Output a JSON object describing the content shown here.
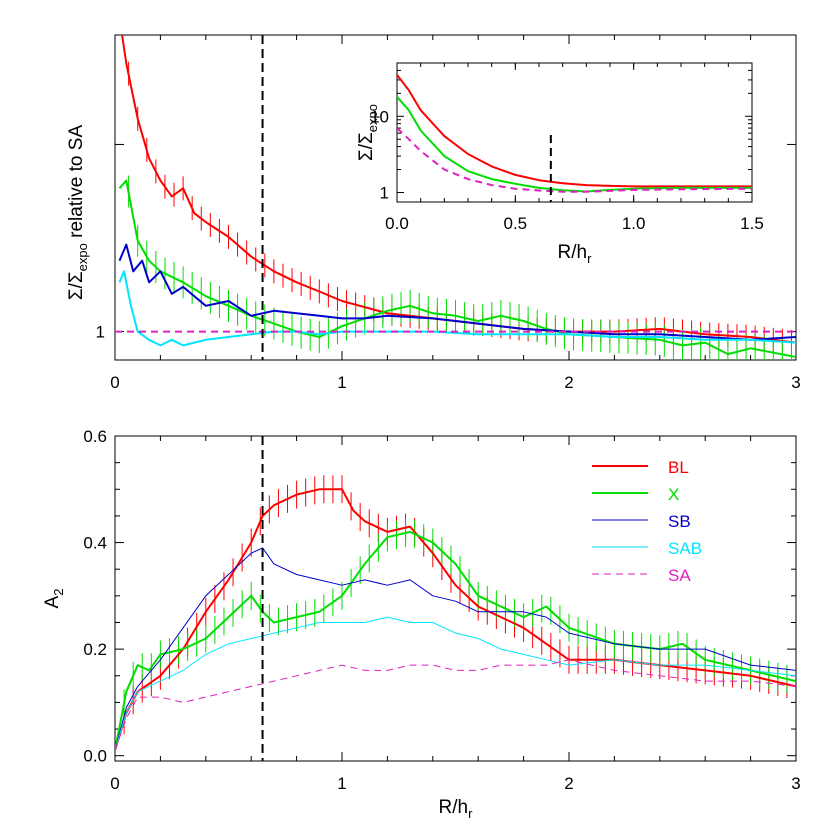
{
  "colors": {
    "BL": "#ff0000",
    "X": "#00dd00",
    "SB": "#0000cc",
    "SAB": "#00e5ff",
    "SA": "#e020c0",
    "marker": "#000000"
  },
  "chart_data": [
    {
      "type": "line",
      "panel": "top",
      "ylabel": "Σ/Σ_expo  relative to SA",
      "xlabel": "",
      "xlim": [
        0,
        3
      ],
      "ylim": [
        0.9,
        3.0
      ],
      "yscale": "log",
      "x_ticks": [
        "0",
        "1",
        "2",
        "3"
      ],
      "y_tick_labels": [
        "1"
      ],
      "vline_x": 0.65,
      "series": [
        {
          "key": "BL",
          "x": [
            0.02,
            0.05,
            0.1,
            0.15,
            0.2,
            0.25,
            0.3,
            0.35,
            0.4,
            0.5,
            0.6,
            0.7,
            0.8,
            0.9,
            1.0,
            1.2,
            1.4,
            1.6,
            1.8,
            2.0,
            2.2,
            2.4,
            2.6,
            2.8,
            3.0
          ],
          "y": [
            3.2,
            2.7,
            2.2,
            1.9,
            1.75,
            1.65,
            1.7,
            1.55,
            1.5,
            1.42,
            1.32,
            1.25,
            1.2,
            1.16,
            1.12,
            1.07,
            1.05,
            1.03,
            1.01,
            1.0,
            1.0,
            1.01,
            0.99,
            0.98,
            0.96
          ]
        },
        {
          "key": "X",
          "x": [
            0.02,
            0.05,
            0.1,
            0.15,
            0.2,
            0.3,
            0.4,
            0.5,
            0.6,
            0.7,
            0.8,
            0.9,
            1.0,
            1.1,
            1.2,
            1.3,
            1.4,
            1.5,
            1.6,
            1.7,
            1.8,
            1.9,
            2.0,
            2.2,
            2.4,
            2.5,
            2.6,
            2.7,
            2.8,
            3.0
          ],
          "y": [
            1.7,
            1.75,
            1.4,
            1.3,
            1.25,
            1.2,
            1.14,
            1.1,
            1.06,
            1.03,
            1.0,
            0.98,
            1.02,
            1.05,
            1.08,
            1.1,
            1.07,
            1.06,
            1.04,
            1.06,
            1.04,
            1.01,
            0.99,
            0.98,
            0.97,
            0.95,
            0.96,
            0.92,
            0.94,
            0.91
          ]
        },
        {
          "key": "SB",
          "x": [
            0.02,
            0.05,
            0.08,
            0.12,
            0.15,
            0.2,
            0.25,
            0.3,
            0.4,
            0.5,
            0.6,
            0.7,
            0.8,
            0.9,
            1.0,
            1.1,
            1.2,
            1.4,
            1.6,
            1.8,
            2.0,
            2.2,
            2.4,
            2.6,
            2.8,
            3.0
          ],
          "y": [
            1.3,
            1.38,
            1.25,
            1.3,
            1.2,
            1.25,
            1.15,
            1.18,
            1.1,
            1.12,
            1.06,
            1.08,
            1.07,
            1.06,
            1.05,
            1.05,
            1.06,
            1.05,
            1.03,
            1.01,
            1.0,
            0.99,
            0.99,
            0.98,
            0.97,
            0.98
          ]
        },
        {
          "key": "SAB",
          "x": [
            0.02,
            0.04,
            0.07,
            0.1,
            0.15,
            0.2,
            0.25,
            0.3,
            0.35,
            0.4,
            0.5,
            0.6,
            0.7,
            0.8,
            0.9,
            1.0,
            1.2,
            1.4,
            1.6,
            1.8,
            2.0,
            2.2,
            2.4,
            2.6,
            2.8,
            3.0
          ],
          "y": [
            1.2,
            1.25,
            1.1,
            1.0,
            0.97,
            0.95,
            0.97,
            0.95,
            0.96,
            0.97,
            0.98,
            0.99,
            1.0,
            1.0,
            0.99,
            1.0,
            1.0,
            1.0,
            0.99,
            0.99,
            0.99,
            0.98,
            0.98,
            0.97,
            0.97,
            0.96
          ]
        },
        {
          "key": "SA",
          "x": [
            0,
            3
          ],
          "y": [
            1.0,
            1.0
          ],
          "dashed": true
        }
      ]
    },
    {
      "type": "line",
      "panel": "inset",
      "ylabel": "Σ/Σ_expo",
      "xlabel": "R/h_r",
      "xlim": [
        0,
        1.5
      ],
      "ylim": [
        0.75,
        50
      ],
      "yscale": "log",
      "x_ticks": [
        "0.0",
        "0.5",
        "1.0",
        "1.5"
      ],
      "y_tick_labels": [
        "1",
        "10"
      ],
      "vline_x": 0.65,
      "series": [
        {
          "key": "BL",
          "x": [
            0.0,
            0.05,
            0.1,
            0.2,
            0.3,
            0.4,
            0.5,
            0.6,
            0.7,
            0.8,
            0.9,
            1.0,
            1.2,
            1.5
          ],
          "y": [
            35,
            22,
            12,
            5.5,
            3.2,
            2.2,
            1.7,
            1.45,
            1.32,
            1.25,
            1.22,
            1.2,
            1.2,
            1.2
          ]
        },
        {
          "key": "X",
          "x": [
            0.0,
            0.05,
            0.1,
            0.2,
            0.3,
            0.4,
            0.5,
            0.6,
            0.7,
            0.8,
            0.9,
            1.0,
            1.2,
            1.5
          ],
          "y": [
            18,
            12,
            6.5,
            3.0,
            1.9,
            1.5,
            1.3,
            1.15,
            1.07,
            1.03,
            1.08,
            1.12,
            1.15,
            1.15
          ]
        },
        {
          "key": "SA",
          "x": [
            0.0,
            0.05,
            0.1,
            0.2,
            0.3,
            0.4,
            0.5,
            0.6,
            0.7,
            0.8,
            0.9,
            1.0,
            1.2,
            1.5
          ],
          "y": [
            7,
            5,
            3.5,
            2.0,
            1.5,
            1.25,
            1.12,
            1.06,
            1.02,
            1.02,
            1.05,
            1.08,
            1.1,
            1.12
          ],
          "dashed": true
        }
      ]
    },
    {
      "type": "line",
      "panel": "bottom",
      "ylabel": "A_2",
      "xlabel": "R/h_r",
      "xlim": [
        0,
        3
      ],
      "ylim": [
        -0.01,
        0.6
      ],
      "x_ticks": [
        "0",
        "1",
        "2",
        "3"
      ],
      "y_ticks": [
        "0.0",
        "0.2",
        "0.4",
        "0.6"
      ],
      "vline_x": 0.65,
      "legend": {
        "position": "top-right",
        "entries": [
          "BL",
          "X",
          "SB",
          "SAB",
          "SA"
        ]
      },
      "series": [
        {
          "key": "BL",
          "name": "BL",
          "x": [
            0.0,
            0.05,
            0.1,
            0.2,
            0.3,
            0.4,
            0.5,
            0.6,
            0.65,
            0.7,
            0.8,
            0.9,
            1.0,
            1.05,
            1.1,
            1.2,
            1.3,
            1.4,
            1.5,
            1.6,
            1.7,
            1.8,
            1.9,
            2.0,
            2.2,
            2.4,
            2.6,
            2.8,
            3.0
          ],
          "y": [
            0.01,
            0.08,
            0.12,
            0.15,
            0.2,
            0.27,
            0.33,
            0.4,
            0.45,
            0.47,
            0.49,
            0.5,
            0.5,
            0.46,
            0.44,
            0.42,
            0.43,
            0.38,
            0.32,
            0.28,
            0.26,
            0.24,
            0.21,
            0.18,
            0.18,
            0.17,
            0.16,
            0.15,
            0.13
          ]
        },
        {
          "key": "X",
          "name": "X",
          "x": [
            0.0,
            0.05,
            0.1,
            0.15,
            0.2,
            0.3,
            0.4,
            0.5,
            0.6,
            0.65,
            0.7,
            0.8,
            0.9,
            1.0,
            1.1,
            1.2,
            1.3,
            1.4,
            1.5,
            1.6,
            1.7,
            1.8,
            1.9,
            2.0,
            2.2,
            2.4,
            2.5,
            2.6,
            2.8,
            3.0
          ],
          "y": [
            0.01,
            0.12,
            0.17,
            0.16,
            0.19,
            0.2,
            0.22,
            0.26,
            0.3,
            0.27,
            0.25,
            0.26,
            0.27,
            0.3,
            0.36,
            0.41,
            0.42,
            0.4,
            0.36,
            0.3,
            0.28,
            0.26,
            0.28,
            0.24,
            0.21,
            0.2,
            0.21,
            0.18,
            0.16,
            0.14
          ]
        },
        {
          "key": "SB",
          "name": "SB",
          "x": [
            0.0,
            0.05,
            0.1,
            0.2,
            0.3,
            0.4,
            0.5,
            0.6,
            0.65,
            0.7,
            0.8,
            0.9,
            1.0,
            1.1,
            1.2,
            1.3,
            1.4,
            1.5,
            1.6,
            1.7,
            1.8,
            1.9,
            2.0,
            2.2,
            2.4,
            2.6,
            2.8,
            3.0
          ],
          "y": [
            0.01,
            0.09,
            0.13,
            0.18,
            0.24,
            0.3,
            0.34,
            0.38,
            0.39,
            0.36,
            0.34,
            0.33,
            0.32,
            0.33,
            0.32,
            0.33,
            0.3,
            0.29,
            0.27,
            0.27,
            0.27,
            0.26,
            0.23,
            0.21,
            0.2,
            0.2,
            0.17,
            0.16
          ]
        },
        {
          "key": "SAB",
          "name": "SAB",
          "x": [
            0.0,
            0.05,
            0.1,
            0.2,
            0.3,
            0.4,
            0.5,
            0.6,
            0.7,
            0.8,
            0.9,
            1.0,
            1.1,
            1.2,
            1.3,
            1.4,
            1.5,
            1.6,
            1.7,
            1.8,
            1.9,
            2.0,
            2.2,
            2.4,
            2.6,
            2.8,
            3.0
          ],
          "y": [
            0.01,
            0.08,
            0.12,
            0.14,
            0.16,
            0.19,
            0.21,
            0.22,
            0.23,
            0.24,
            0.25,
            0.25,
            0.25,
            0.26,
            0.25,
            0.25,
            0.23,
            0.22,
            0.2,
            0.19,
            0.18,
            0.17,
            0.18,
            0.17,
            0.17,
            0.16,
            0.15
          ]
        },
        {
          "key": "SA",
          "name": "SA",
          "x": [
            0.0,
            0.05,
            0.1,
            0.2,
            0.3,
            0.4,
            0.5,
            0.6,
            0.7,
            0.8,
            0.9,
            1.0,
            1.1,
            1.2,
            1.3,
            1.4,
            1.5,
            1.6,
            1.7,
            1.8,
            1.9,
            2.0,
            2.2,
            2.4,
            2.6,
            2.8,
            3.0
          ],
          "y": [
            0.01,
            0.07,
            0.11,
            0.11,
            0.1,
            0.11,
            0.12,
            0.13,
            0.14,
            0.15,
            0.16,
            0.17,
            0.16,
            0.16,
            0.17,
            0.17,
            0.16,
            0.16,
            0.17,
            0.17,
            0.17,
            0.18,
            0.16,
            0.15,
            0.14,
            0.14,
            0.13
          ],
          "dashed": true
        }
      ]
    }
  ]
}
